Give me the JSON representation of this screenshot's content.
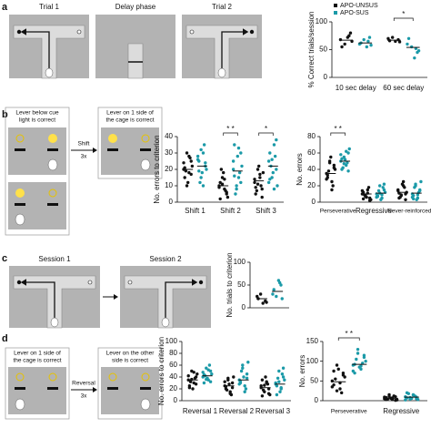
{
  "labels": {
    "panel_letters": [
      "a",
      "b",
      "c",
      "d"
    ],
    "a": {
      "trials": [
        "Trial 1",
        "Delay phase",
        "Trial 2"
      ]
    },
    "b": {
      "left_caption": [
        "Lever below cue",
        "light is correct"
      ],
      "arrow": [
        "Shift",
        "3x"
      ],
      "right_caption": [
        "Lever on 1 side of",
        "the cage is correct"
      ]
    },
    "c": {
      "sessions": [
        "Session 1",
        "Session 2"
      ]
    },
    "d": {
      "left_caption": [
        "Lever on 1 side of",
        "the cage is correct"
      ],
      "arrow": [
        "Reversal",
        "3x"
      ],
      "right_caption": [
        "Lever on the other",
        "side is correct"
      ]
    }
  },
  "chart_data": [
    {
      "type": "dot",
      "ylabel": "% Correct trials/session",
      "ylim": [
        0,
        100
      ],
      "yticks": [
        0,
        50,
        100
      ],
      "categories": [
        "10 sec delay",
        "60 sec delay"
      ],
      "significance": [
        null,
        "*"
      ],
      "legend": true,
      "series": [
        {
          "name": "APO-UNSUS",
          "color": "#111111",
          "values": [
            [
              68,
              80,
              72,
              60,
              55,
              65,
              75
            ],
            [
              70,
              68,
              65,
              72,
              66,
              64
            ]
          ],
          "means": [
            67,
            67
          ]
        },
        {
          "name": "APO-SUS",
          "color": "#1b9aa8",
          "values": [
            [
              60,
              72,
              55,
              68,
              62,
              58,
              65
            ],
            [
              60,
              45,
              35,
              55,
              70,
              48,
              52
            ]
          ],
          "means": [
            62,
            54
          ]
        }
      ]
    },
    {
      "type": "dot",
      "ylabel": "No. errors to criterion",
      "ylim": [
        0,
        40
      ],
      "yticks": [
        0,
        10,
        20,
        30,
        40
      ],
      "categories": [
        "Shift 1",
        "Shift 2",
        "Shift 3"
      ],
      "significance": [
        null,
        "* *",
        "*"
      ],
      "legend": false,
      "series": [
        {
          "color": "#111111",
          "values": [
            [
              20,
              25,
              18,
              30,
              15,
              22,
              27,
              12,
              19,
              24,
              17,
              28,
              10,
              21
            ],
            [
              10,
              5,
              8,
              15,
              12,
              3,
              7,
              18,
              20,
              9,
              6,
              14,
              11,
              2
            ],
            [
              12,
              8,
              15,
              20,
              5,
              18,
              10,
              22,
              7,
              14,
              3,
              17,
              11,
              9
            ]
          ],
          "means": [
            20,
            10,
            13
          ]
        },
        {
          "color": "#1b9aa8",
          "values": [
            [
              28,
              22,
              30,
              15,
              25,
              20,
              35,
              18,
              12,
              26,
              24,
              10,
              32,
              19
            ],
            [
              25,
              30,
              15,
              10,
              35,
              22,
              18,
              28,
              5,
              20,
              12,
              33,
              8,
              16
            ],
            [
              25,
              20,
              35,
              15,
              30,
              10,
              28,
              18,
              22,
              12,
              38,
              8,
              26,
              14
            ]
          ],
          "means": [
            22,
            19,
            22
          ]
        }
      ]
    },
    {
      "type": "dot",
      "ylabel": "No. errors",
      "ylim": [
        0,
        80
      ],
      "yticks": [
        0,
        20,
        40,
        60,
        80
      ],
      "categories": [
        "Perseverative",
        "Regressive",
        "Never-reinforced"
      ],
      "significance": [
        "* *",
        null,
        null
      ],
      "legend": false,
      "series": [
        {
          "color": "#111111",
          "values": [
            [
              35,
              45,
              25,
              50,
              30,
              40,
              20,
              55,
              38,
              28,
              42,
              15,
              48,
              33
            ],
            [
              10,
              5,
              15,
              8,
              12,
              3,
              18,
              6,
              9,
              14,
              2,
              11,
              7,
              4
            ],
            [
              15,
              10,
              20,
              8,
              5,
              12,
              18,
              22,
              6,
              14,
              3,
              25,
              9,
              11
            ]
          ],
          "means": [
            35,
            10,
            12
          ]
        },
        {
          "color": "#1b9aa8",
          "values": [
            [
              50,
              60,
              45,
              55,
              40,
              65,
              48,
              52,
              42,
              58,
              38,
              62,
              47,
              53
            ],
            [
              10,
              15,
              5,
              20,
              8,
              12,
              18,
              3,
              14,
              6,
              22,
              9,
              11,
              7
            ],
            [
              10,
              15,
              5,
              20,
              8,
              25,
              12,
              3,
              18,
              6,
              14,
              9,
              22,
              4
            ]
          ],
          "means": [
            50,
            11,
            11
          ]
        }
      ]
    },
    {
      "type": "dot",
      "ylabel": "No. trials to criterion",
      "ylim": [
        0,
        100
      ],
      "yticks": [
        0,
        50,
        100
      ],
      "categories": [
        null
      ],
      "significance": [
        null
      ],
      "legend": false,
      "series": [
        {
          "color": "#111111",
          "values": [
            [
              25,
              15,
              10,
              30,
              20,
              12
            ]
          ],
          "means": [
            20
          ]
        },
        {
          "color": "#1b9aa8",
          "values": [
            [
              30,
              50,
              60,
              25,
              40,
              20,
              55
            ]
          ],
          "means": [
            36
          ]
        }
      ]
    },
    {
      "type": "dot",
      "ylabel": "No. errors to criterion",
      "ylim": [
        0,
        100
      ],
      "yticks": [
        0,
        20,
        40,
        60,
        80,
        100
      ],
      "categories": [
        "Reversal 1",
        "Reversal 2",
        "Reversal 3"
      ],
      "significance": [
        null,
        null,
        null
      ],
      "legend": false,
      "series": [
        {
          "color": "#111111",
          "values": [
            [
              35,
              40,
              30,
              50,
              25,
              45,
              38,
              20,
              32,
              42,
              28,
              48,
              36,
              22
            ],
            [
              25,
              30,
              15,
              35,
              20,
              40,
              10,
              28,
              18,
              32,
              22,
              12,
              38,
              24
            ],
            [
              25,
              20,
              30,
              15,
              35,
              10,
              28,
              40,
              18,
              22,
              12,
              32,
              26,
              8
            ]
          ],
          "means": [
            35,
            25,
            22
          ]
        },
        {
          "color": "#1b9aa8",
          "values": [
            [
              40,
              50,
              35,
              55,
              30,
              45,
              60,
              38,
              42,
              48,
              32,
              52,
              36,
              44
            ],
            [
              35,
              45,
              25,
              55,
              30,
              65,
              20,
              40,
              50,
              28,
              38,
              15,
              60,
              32
            ],
            [
              30,
              40,
              20,
              50,
              25,
              35,
              45,
              15,
              38,
              28,
              55,
              22,
              32,
              10
            ]
          ],
          "means": [
            42,
            35,
            28
          ]
        }
      ]
    },
    {
      "type": "dot",
      "ylabel": "No. errors",
      "ylim": [
        0,
        150
      ],
      "yticks": [
        0,
        50,
        100,
        150
      ],
      "categories": [
        "Perseverative",
        "Regressive"
      ],
      "significance": [
        "* *",
        null
      ],
      "legend": false,
      "series": [
        {
          "color": "#111111",
          "values": [
            [
              50,
              70,
              30,
              90,
              40,
              60,
              20,
              80,
              55,
              35,
              65,
              45,
              25,
              75
            ],
            [
              5,
              10,
              3,
              15,
              8,
              2,
              12,
              6,
              4,
              9,
              1,
              7,
              11,
              3
            ]
          ],
          "means": [
            48,
            6
          ]
        },
        {
          "color": "#1b9aa8",
          "values": [
            [
              90,
              110,
              80,
              120,
              70,
              100,
              95,
              85,
              105,
              75,
              115,
              88,
              130,
              92
            ],
            [
              10,
              5,
              15,
              8,
              20,
              3,
              12,
              6,
              18,
              2,
              9,
              14,
              4,
              7
            ]
          ],
          "means": [
            92,
            9
          ]
        }
      ]
    }
  ]
}
